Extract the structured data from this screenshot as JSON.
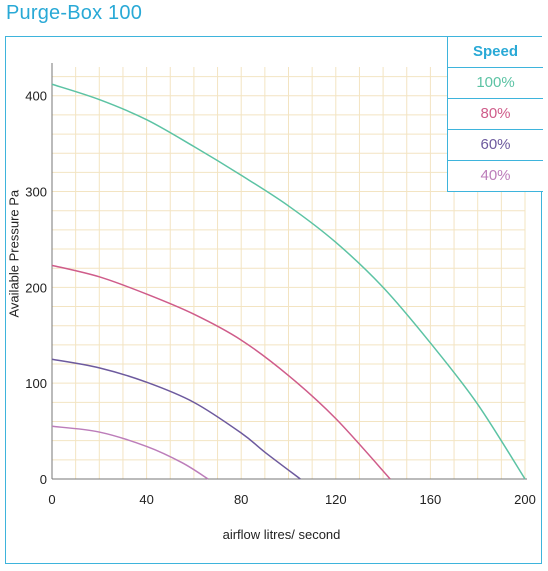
{
  "title": "Purge-Box 100",
  "chart_data": {
    "type": "line",
    "xlabel": "airflow litres/ second",
    "ylabel": "Available Pressure Pa",
    "xlim": [
      0,
      200
    ],
    "ylim": [
      0,
      430
    ],
    "xticks": [
      0,
      40,
      80,
      120,
      160,
      200
    ],
    "yticks": [
      0,
      100,
      200,
      300,
      400
    ],
    "grid": true,
    "legend_title": "Speed",
    "legend_position": "top-right",
    "series": [
      {
        "name": "100%",
        "color": "#5cc3a4",
        "x": [
          0,
          20,
          40,
          60,
          80,
          100,
          120,
          140,
          160,
          180,
          200
        ],
        "y": [
          412,
          396,
          375,
          347,
          317,
          285,
          247,
          200,
          142,
          78,
          0
        ]
      },
      {
        "name": "80%",
        "color": "#cf5c8a",
        "x": [
          0,
          20,
          40,
          60,
          80,
          100,
          120,
          143
        ],
        "y": [
          223,
          211,
          193,
          172,
          145,
          108,
          63,
          0
        ]
      },
      {
        "name": "60%",
        "color": "#6d5a9e",
        "x": [
          0,
          20,
          40,
          60,
          80,
          90,
          105
        ],
        "y": [
          125,
          116,
          101,
          80,
          48,
          28,
          0
        ]
      },
      {
        "name": "40%",
        "color": "#bc7dba",
        "x": [
          0,
          20,
          40,
          55,
          66
        ],
        "y": [
          55,
          49,
          34,
          17,
          0
        ]
      }
    ]
  }
}
